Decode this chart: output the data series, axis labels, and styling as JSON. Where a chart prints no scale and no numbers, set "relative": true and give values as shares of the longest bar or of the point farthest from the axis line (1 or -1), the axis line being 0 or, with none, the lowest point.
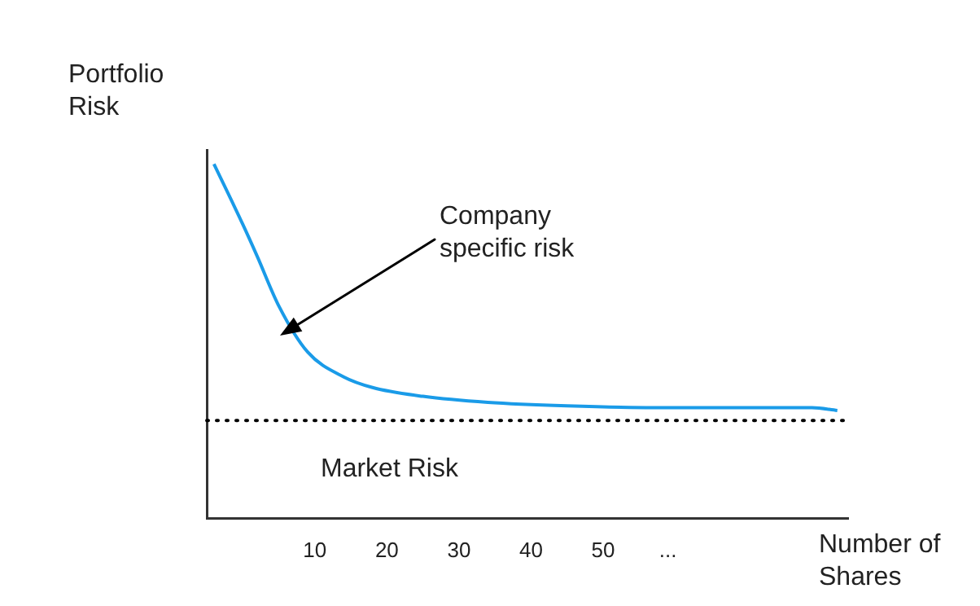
{
  "chart_data": {
    "type": "line",
    "relative": true,
    "xlabel": "Number of Shares",
    "ylabel": "Portfolio Risk",
    "x": [
      -4,
      0,
      2,
      5,
      9,
      14,
      18,
      25,
      34,
      45,
      57,
      68,
      79,
      82.5
    ],
    "series": [
      {
        "color": "#1a9be8",
        "values": [
          1.0,
          0.83,
          0.74,
          0.6,
          0.47,
          0.4,
          0.37,
          0.345,
          0.328,
          0.318,
          0.313,
          0.313,
          0.313,
          0.305
        ]
      }
    ],
    "xlim": [
      -5,
      84
    ],
    "xticks": [
      10,
      20,
      30,
      40,
      50,
      {
        "value": 59,
        "label": "..."
      }
    ],
    "ref_lines": [
      {
        "axis": "y",
        "value": 0.277,
        "label": "Market Risk",
        "color": "#000000",
        "line_style": "dotted"
      }
    ],
    "annotations": [
      "Company specific risk"
    ],
    "grid": false,
    "legend": false,
    "marker": "none",
    "line_style": "solid"
  }
}
